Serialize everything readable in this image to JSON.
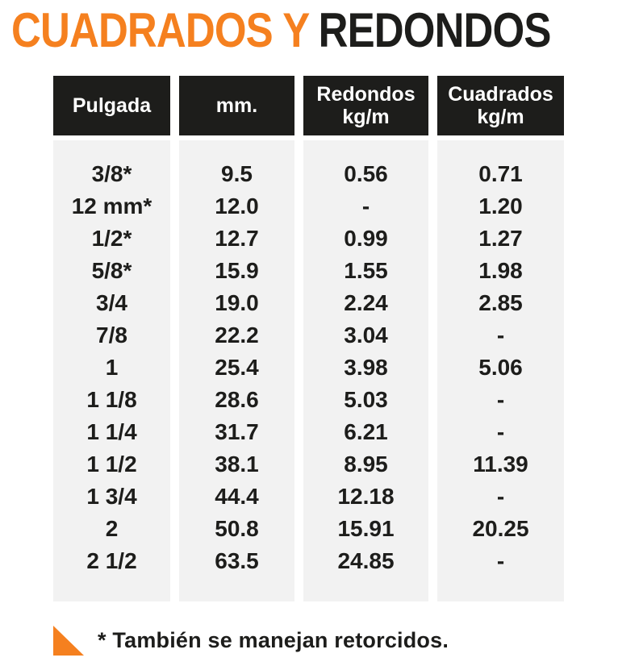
{
  "title": {
    "accent_text": "CUADRADOS Y",
    "dark_text": "REDONDOS"
  },
  "colors": {
    "accent_orange": "#F5801F",
    "near_black": "#1D1D1B",
    "column_gray": "#F2F2F2"
  },
  "table": {
    "headers": [
      "Pulgada",
      "mm.",
      "Redondos\nkg/m",
      "Cuadrados\nkg/m"
    ],
    "column_keys": [
      "pulgada",
      "mm",
      "redondos_kg_m",
      "cuadrados_kg_m"
    ],
    "rows": [
      [
        "3/8*",
        "9.5",
        "0.56",
        "0.71"
      ],
      [
        "12 mm*",
        "12.0",
        "-",
        "1.20"
      ],
      [
        "1/2*",
        "12.7",
        "0.99",
        "1.27"
      ],
      [
        "5/8*",
        "15.9",
        "1.55",
        "1.98"
      ],
      [
        "3/4",
        "19.0",
        "2.24",
        "2.85"
      ],
      [
        "7/8",
        "22.2",
        "3.04",
        "-"
      ],
      [
        "1",
        "25.4",
        "3.98",
        "5.06"
      ],
      [
        "1 1/8",
        "28.6",
        "5.03",
        "-"
      ],
      [
        "1 1/4",
        "31.7",
        "6.21",
        "-"
      ],
      [
        "1 1/2",
        "38.1",
        "8.95",
        "11.39"
      ],
      [
        "1 3/4",
        "44.4",
        "12.18",
        "-"
      ],
      [
        "2",
        "50.8",
        "15.91",
        "20.25"
      ],
      [
        "2 1/2",
        "63.5",
        "24.85",
        "-"
      ]
    ]
  },
  "footnote": {
    "icon": "corner-triangle-icon",
    "text": "* También se manejan retorcidos."
  }
}
